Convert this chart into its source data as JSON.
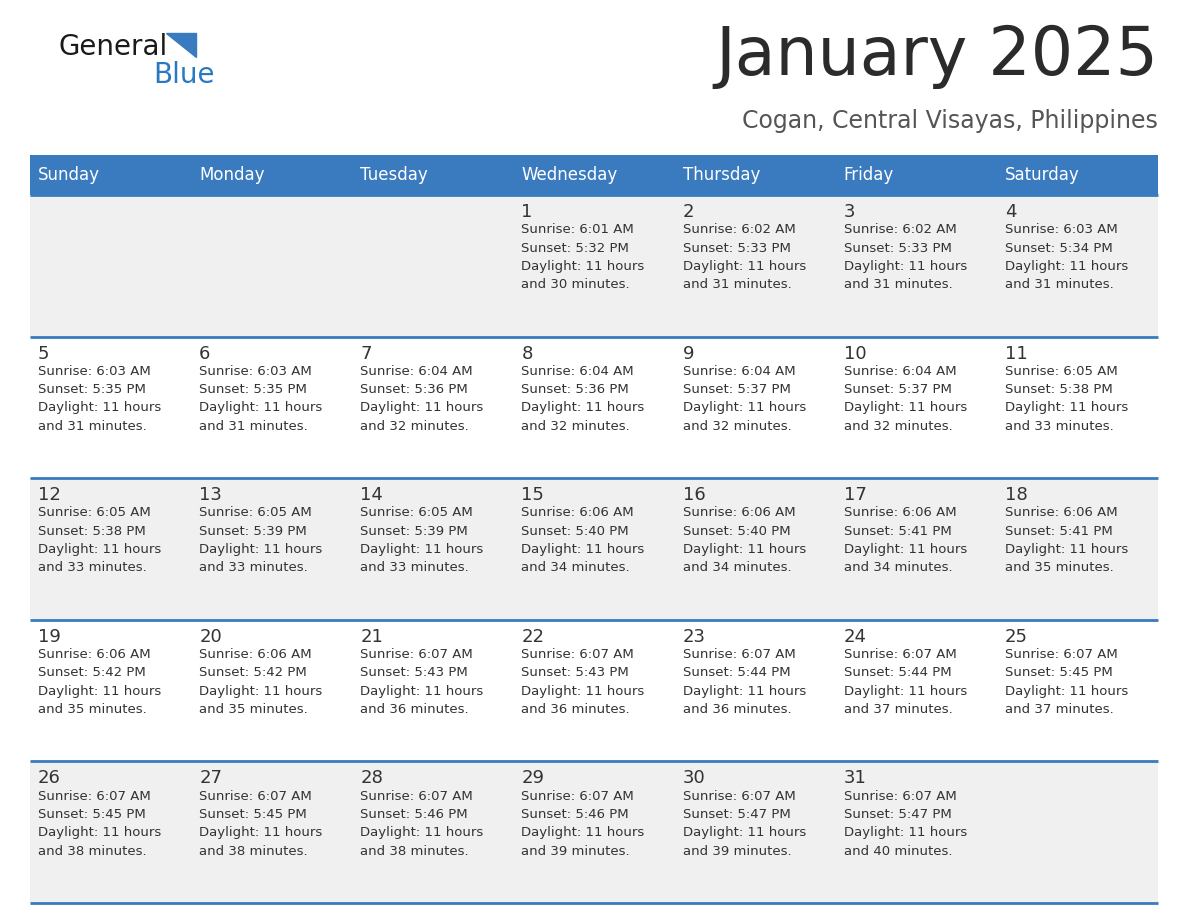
{
  "title": "January 2025",
  "subtitle": "Cogan, Central Visayas, Philippines",
  "days_of_week": [
    "Sunday",
    "Monday",
    "Tuesday",
    "Wednesday",
    "Thursday",
    "Friday",
    "Saturday"
  ],
  "header_bg": "#3a7abf",
  "header_text": "#ffffff",
  "cell_bg_even": "#f0f0f0",
  "cell_bg_odd": "#ffffff",
  "cell_text": "#333333",
  "border_color": "#3a7abf",
  "title_color": "#2b2b2b",
  "subtitle_color": "#555555",
  "general_black": "#1a1a1a",
  "general_blue": "#2979c2",
  "triangle_color": "#3a7abf",
  "calendar_data": [
    {
      "day": 1,
      "col": 3,
      "row": 0,
      "sunrise": "6:01 AM",
      "sunset": "5:32 PM",
      "daylight_min": 30
    },
    {
      "day": 2,
      "col": 4,
      "row": 0,
      "sunrise": "6:02 AM",
      "sunset": "5:33 PM",
      "daylight_min": 31
    },
    {
      "day": 3,
      "col": 5,
      "row": 0,
      "sunrise": "6:02 AM",
      "sunset": "5:33 PM",
      "daylight_min": 31
    },
    {
      "day": 4,
      "col": 6,
      "row": 0,
      "sunrise": "6:03 AM",
      "sunset": "5:34 PM",
      "daylight_min": 31
    },
    {
      "day": 5,
      "col": 0,
      "row": 1,
      "sunrise": "6:03 AM",
      "sunset": "5:35 PM",
      "daylight_min": 31
    },
    {
      "day": 6,
      "col": 1,
      "row": 1,
      "sunrise": "6:03 AM",
      "sunset": "5:35 PM",
      "daylight_min": 31
    },
    {
      "day": 7,
      "col": 2,
      "row": 1,
      "sunrise": "6:04 AM",
      "sunset": "5:36 PM",
      "daylight_min": 32
    },
    {
      "day": 8,
      "col": 3,
      "row": 1,
      "sunrise": "6:04 AM",
      "sunset": "5:36 PM",
      "daylight_min": 32
    },
    {
      "day": 9,
      "col": 4,
      "row": 1,
      "sunrise": "6:04 AM",
      "sunset": "5:37 PM",
      "daylight_min": 32
    },
    {
      "day": 10,
      "col": 5,
      "row": 1,
      "sunrise": "6:04 AM",
      "sunset": "5:37 PM",
      "daylight_min": 32
    },
    {
      "day": 11,
      "col": 6,
      "row": 1,
      "sunrise": "6:05 AM",
      "sunset": "5:38 PM",
      "daylight_min": 33
    },
    {
      "day": 12,
      "col": 0,
      "row": 2,
      "sunrise": "6:05 AM",
      "sunset": "5:38 PM",
      "daylight_min": 33
    },
    {
      "day": 13,
      "col": 1,
      "row": 2,
      "sunrise": "6:05 AM",
      "sunset": "5:39 PM",
      "daylight_min": 33
    },
    {
      "day": 14,
      "col": 2,
      "row": 2,
      "sunrise": "6:05 AM",
      "sunset": "5:39 PM",
      "daylight_min": 33
    },
    {
      "day": 15,
      "col": 3,
      "row": 2,
      "sunrise": "6:06 AM",
      "sunset": "5:40 PM",
      "daylight_min": 34
    },
    {
      "day": 16,
      "col": 4,
      "row": 2,
      "sunrise": "6:06 AM",
      "sunset": "5:40 PM",
      "daylight_min": 34
    },
    {
      "day": 17,
      "col": 5,
      "row": 2,
      "sunrise": "6:06 AM",
      "sunset": "5:41 PM",
      "daylight_min": 34
    },
    {
      "day": 18,
      "col": 6,
      "row": 2,
      "sunrise": "6:06 AM",
      "sunset": "5:41 PM",
      "daylight_min": 35
    },
    {
      "day": 19,
      "col": 0,
      "row": 3,
      "sunrise": "6:06 AM",
      "sunset": "5:42 PM",
      "daylight_min": 35
    },
    {
      "day": 20,
      "col": 1,
      "row": 3,
      "sunrise": "6:06 AM",
      "sunset": "5:42 PM",
      "daylight_min": 35
    },
    {
      "day": 21,
      "col": 2,
      "row": 3,
      "sunrise": "6:07 AM",
      "sunset": "5:43 PM",
      "daylight_min": 36
    },
    {
      "day": 22,
      "col": 3,
      "row": 3,
      "sunrise": "6:07 AM",
      "sunset": "5:43 PM",
      "daylight_min": 36
    },
    {
      "day": 23,
      "col": 4,
      "row": 3,
      "sunrise": "6:07 AM",
      "sunset": "5:44 PM",
      "daylight_min": 36
    },
    {
      "day": 24,
      "col": 5,
      "row": 3,
      "sunrise": "6:07 AM",
      "sunset": "5:44 PM",
      "daylight_min": 37
    },
    {
      "day": 25,
      "col": 6,
      "row": 3,
      "sunrise": "6:07 AM",
      "sunset": "5:45 PM",
      "daylight_min": 37
    },
    {
      "day": 26,
      "col": 0,
      "row": 4,
      "sunrise": "6:07 AM",
      "sunset": "5:45 PM",
      "daylight_min": 38
    },
    {
      "day": 27,
      "col": 1,
      "row": 4,
      "sunrise": "6:07 AM",
      "sunset": "5:45 PM",
      "daylight_min": 38
    },
    {
      "day": 28,
      "col": 2,
      "row": 4,
      "sunrise": "6:07 AM",
      "sunset": "5:46 PM",
      "daylight_min": 38
    },
    {
      "day": 29,
      "col": 3,
      "row": 4,
      "sunrise": "6:07 AM",
      "sunset": "5:46 PM",
      "daylight_min": 39
    },
    {
      "day": 30,
      "col": 4,
      "row": 4,
      "sunrise": "6:07 AM",
      "sunset": "5:47 PM",
      "daylight_min": 39
    },
    {
      "day": 31,
      "col": 5,
      "row": 4,
      "sunrise": "6:07 AM",
      "sunset": "5:47 PM",
      "daylight_min": 40
    }
  ]
}
